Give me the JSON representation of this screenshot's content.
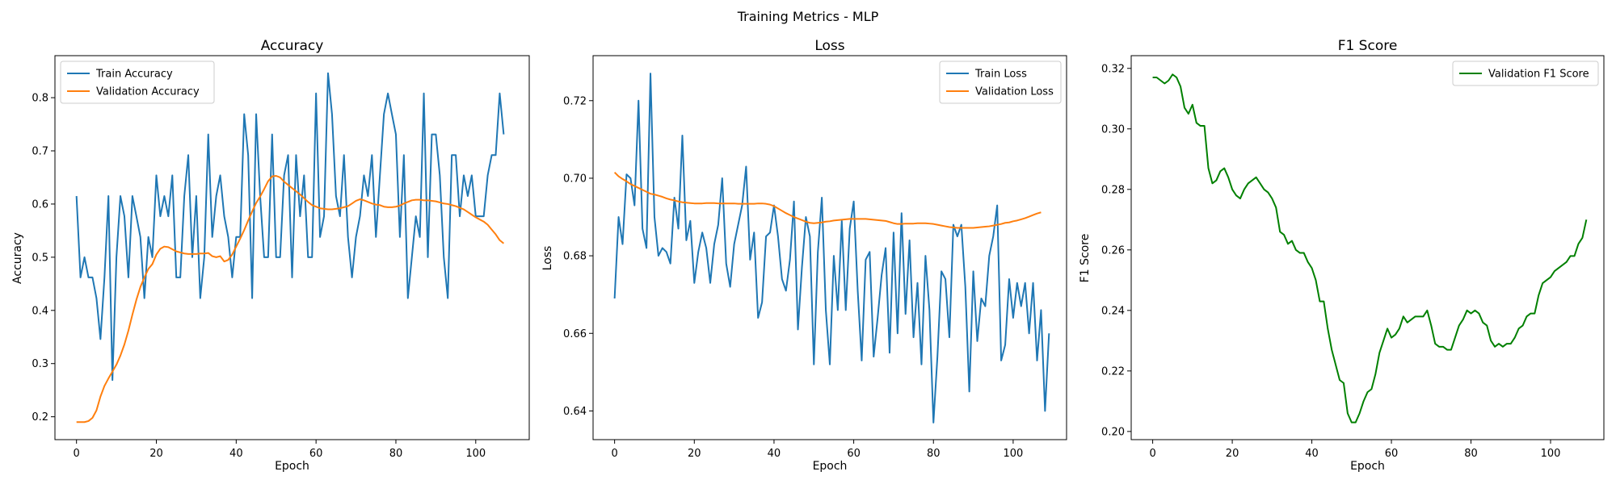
{
  "figure": {
    "title": "Training Metrics - MLP"
  },
  "colors": {
    "train": "#1f77b4",
    "validation": "#ff7f0e",
    "f1": "#008000",
    "axes": "#000000",
    "background": "#ffffff"
  },
  "chart_data": [
    {
      "type": "line",
      "title": "Accuracy",
      "xlabel": "Epoch",
      "ylabel": "Accuracy",
      "xlim": [
        -5.4,
        113.4
      ],
      "ylim": [
        0.157,
        0.879
      ],
      "xticks": [
        0,
        20,
        40,
        60,
        80,
        100
      ],
      "yticks": [
        0.2,
        0.3,
        0.4,
        0.5,
        0.6,
        0.7,
        0.8
      ],
      "tick_decimals": 1,
      "grid": false,
      "legend_position": "upper-left",
      "series": [
        {
          "name": "Train Accuracy",
          "color": "#1f77b4",
          "values": [
            0.615,
            0.462,
            0.5,
            0.462,
            0.462,
            0.423,
            0.346,
            0.462,
            0.615,
            0.269,
            0.5,
            0.615,
            0.577,
            0.462,
            0.615,
            0.577,
            0.538,
            0.423,
            0.538,
            0.5,
            0.654,
            0.577,
            0.615,
            0.577,
            0.654,
            0.462,
            0.462,
            0.615,
            0.692,
            0.5,
            0.615,
            0.423,
            0.5,
            0.731,
            0.538,
            0.615,
            0.654,
            0.577,
            0.538,
            0.462,
            0.538,
            0.538,
            0.769,
            0.692,
            0.423,
            0.769,
            0.615,
            0.5,
            0.5,
            0.731,
            0.5,
            0.5,
            0.654,
            0.692,
            0.462,
            0.692,
            0.577,
            0.654,
            0.5,
            0.5,
            0.808,
            0.538,
            0.577,
            0.846,
            0.769,
            0.615,
            0.577,
            0.692,
            0.538,
            0.462,
            0.538,
            0.577,
            0.654,
            0.615,
            0.692,
            0.538,
            0.654,
            0.769,
            0.808,
            0.769,
            0.731,
            0.538,
            0.692,
            0.423,
            0.5,
            0.577,
            0.538,
            0.808,
            0.5,
            0.731,
            0.731,
            0.654,
            0.5,
            0.423,
            0.692,
            0.692,
            0.577,
            0.654,
            0.615,
            0.654,
            0.577,
            0.577,
            0.577,
            0.654,
            0.692,
            0.692,
            0.808,
            0.731
          ]
        },
        {
          "name": "Validation Accuracy",
          "color": "#ff7f0e",
          "values": [
            0.19,
            0.19,
            0.19,
            0.192,
            0.198,
            0.212,
            0.238,
            0.258,
            0.272,
            0.285,
            0.298,
            0.315,
            0.336,
            0.362,
            0.392,
            0.42,
            0.444,
            0.462,
            0.478,
            0.487,
            0.505,
            0.516,
            0.52,
            0.519,
            0.515,
            0.511,
            0.509,
            0.507,
            0.506,
            0.506,
            0.506,
            0.507,
            0.507,
            0.508,
            0.502,
            0.5,
            0.502,
            0.492,
            0.495,
            0.505,
            0.52,
            0.535,
            0.551,
            0.569,
            0.586,
            0.602,
            0.614,
            0.628,
            0.643,
            0.652,
            0.653,
            0.65,
            0.642,
            0.636,
            0.63,
            0.624,
            0.618,
            0.611,
            0.604,
            0.598,
            0.595,
            0.592,
            0.591,
            0.59,
            0.59,
            0.591,
            0.592,
            0.594,
            0.596,
            0.601,
            0.606,
            0.609,
            0.607,
            0.604,
            0.601,
            0.599,
            0.598,
            0.595,
            0.594,
            0.594,
            0.595,
            0.597,
            0.601,
            0.604,
            0.607,
            0.608,
            0.608,
            0.607,
            0.607,
            0.606,
            0.605,
            0.603,
            0.601,
            0.6,
            0.598,
            0.596,
            0.593,
            0.59,
            0.585,
            0.58,
            0.575,
            0.571,
            0.567,
            0.561,
            0.552,
            0.543,
            0.532,
            0.526
          ]
        }
      ]
    },
    {
      "type": "line",
      "title": "Loss",
      "xlabel": "Epoch",
      "ylabel": "Loss",
      "xlim": [
        -5.4,
        113.4
      ],
      "ylim": [
        0.6326,
        0.7316
      ],
      "xticks": [
        0,
        20,
        40,
        60,
        80,
        100
      ],
      "yticks": [
        0.64,
        0.66,
        0.68,
        0.7,
        0.72
      ],
      "tick_decimals": 2,
      "grid": false,
      "legend_position": "upper-right",
      "series": [
        {
          "name": "Train Loss",
          "color": "#1f77b4",
          "values": [
            0.669,
            0.69,
            0.683,
            0.701,
            0.7,
            0.693,
            0.72,
            0.687,
            0.682,
            0.727,
            0.69,
            0.68,
            0.682,
            0.681,
            0.678,
            0.695,
            0.687,
            0.711,
            0.684,
            0.689,
            0.673,
            0.681,
            0.686,
            0.682,
            0.673,
            0.683,
            0.688,
            0.7,
            0.678,
            0.672,
            0.683,
            0.688,
            0.693,
            0.703,
            0.679,
            0.686,
            0.664,
            0.668,
            0.685,
            0.686,
            0.693,
            0.685,
            0.674,
            0.671,
            0.679,
            0.694,
            0.661,
            0.677,
            0.69,
            0.685,
            0.652,
            0.681,
            0.695,
            0.666,
            0.652,
            0.68,
            0.666,
            0.689,
            0.666,
            0.687,
            0.694,
            0.671,
            0.653,
            0.679,
            0.681,
            0.654,
            0.664,
            0.675,
            0.682,
            0.655,
            0.686,
            0.66,
            0.691,
            0.665,
            0.684,
            0.659,
            0.673,
            0.652,
            0.68,
            0.666,
            0.637,
            0.654,
            0.676,
            0.674,
            0.659,
            0.688,
            0.685,
            0.688,
            0.672,
            0.645,
            0.676,
            0.658,
            0.669,
            0.667,
            0.68,
            0.685,
            0.693,
            0.653,
            0.657,
            0.674,
            0.664,
            0.673,
            0.667,
            0.673,
            0.66,
            0.673,
            0.653,
            0.666,
            0.64,
            0.66
          ]
        },
        {
          "name": "Validation Loss",
          "color": "#ff7f0e",
          "values": [
            0.7015,
            0.7005,
            0.6998,
            0.6992,
            0.6985,
            0.698,
            0.6975,
            0.697,
            0.6965,
            0.696,
            0.6958,
            0.6955,
            0.6952,
            0.6948,
            0.6945,
            0.6943,
            0.694,
            0.6938,
            0.6937,
            0.6936,
            0.6935,
            0.6935,
            0.6935,
            0.6936,
            0.6936,
            0.6936,
            0.6935,
            0.6935,
            0.6935,
            0.6935,
            0.6935,
            0.6934,
            0.6934,
            0.6934,
            0.6934,
            0.6934,
            0.6935,
            0.6935,
            0.6934,
            0.6932,
            0.6928,
            0.6922,
            0.6916,
            0.691,
            0.6905,
            0.69,
            0.6896,
            0.6892,
            0.6888,
            0.6885,
            0.6884,
            0.6885,
            0.6886,
            0.6888,
            0.6889,
            0.6891,
            0.6892,
            0.6893,
            0.6894,
            0.6895,
            0.6895,
            0.6895,
            0.6895,
            0.6895,
            0.6894,
            0.6893,
            0.6892,
            0.6891,
            0.689,
            0.6887,
            0.6884,
            0.6882,
            0.6882,
            0.6883,
            0.6883,
            0.6883,
            0.6884,
            0.6884,
            0.6884,
            0.6883,
            0.6882,
            0.688,
            0.6878,
            0.6876,
            0.6874,
            0.6873,
            0.6872,
            0.6872,
            0.6872,
            0.6872,
            0.6872,
            0.6873,
            0.6874,
            0.6875,
            0.6876,
            0.6878,
            0.688,
            0.6882,
            0.6885,
            0.6886,
            0.6889,
            0.6891,
            0.6894,
            0.6897,
            0.6901,
            0.6905,
            0.6909,
            0.6912
          ]
        }
      ]
    },
    {
      "type": "line",
      "title": "F1 Score",
      "xlabel": "Epoch",
      "ylabel": "F1 Score",
      "xlim": [
        -5.4,
        113.4
      ],
      "ylim": [
        0.1973,
        0.3242
      ],
      "xticks": [
        0,
        20,
        40,
        60,
        80,
        100
      ],
      "yticks": [
        0.2,
        0.22,
        0.24,
        0.26,
        0.28,
        0.3,
        0.32
      ],
      "tick_decimals": 2,
      "grid": false,
      "legend_position": "upper-right",
      "series": [
        {
          "name": "Validation F1 Score",
          "color": "#008000",
          "values": [
            0.317,
            0.317,
            0.316,
            0.315,
            0.316,
            0.318,
            0.317,
            0.314,
            0.307,
            0.305,
            0.308,
            0.302,
            0.301,
            0.301,
            0.287,
            0.282,
            0.283,
            0.286,
            0.287,
            0.284,
            0.28,
            0.278,
            0.277,
            0.28,
            0.282,
            0.283,
            0.284,
            0.282,
            0.28,
            0.279,
            0.277,
            0.274,
            0.266,
            0.265,
            0.262,
            0.263,
            0.26,
            0.259,
            0.259,
            0.256,
            0.254,
            0.25,
            0.243,
            0.243,
            0.234,
            0.227,
            0.222,
            0.217,
            0.216,
            0.206,
            0.203,
            0.203,
            0.206,
            0.21,
            0.213,
            0.214,
            0.219,
            0.226,
            0.23,
            0.234,
            0.231,
            0.232,
            0.234,
            0.238,
            0.236,
            0.237,
            0.238,
            0.238,
            0.238,
            0.24,
            0.235,
            0.229,
            0.228,
            0.228,
            0.227,
            0.227,
            0.231,
            0.235,
            0.237,
            0.24,
            0.239,
            0.24,
            0.239,
            0.236,
            0.235,
            0.23,
            0.228,
            0.229,
            0.228,
            0.229,
            0.229,
            0.231,
            0.234,
            0.235,
            0.238,
            0.239,
            0.239,
            0.245,
            0.249,
            0.25,
            0.251,
            0.253,
            0.254,
            0.255,
            0.256,
            0.258,
            0.258,
            0.262,
            0.264,
            0.27
          ]
        }
      ]
    }
  ]
}
